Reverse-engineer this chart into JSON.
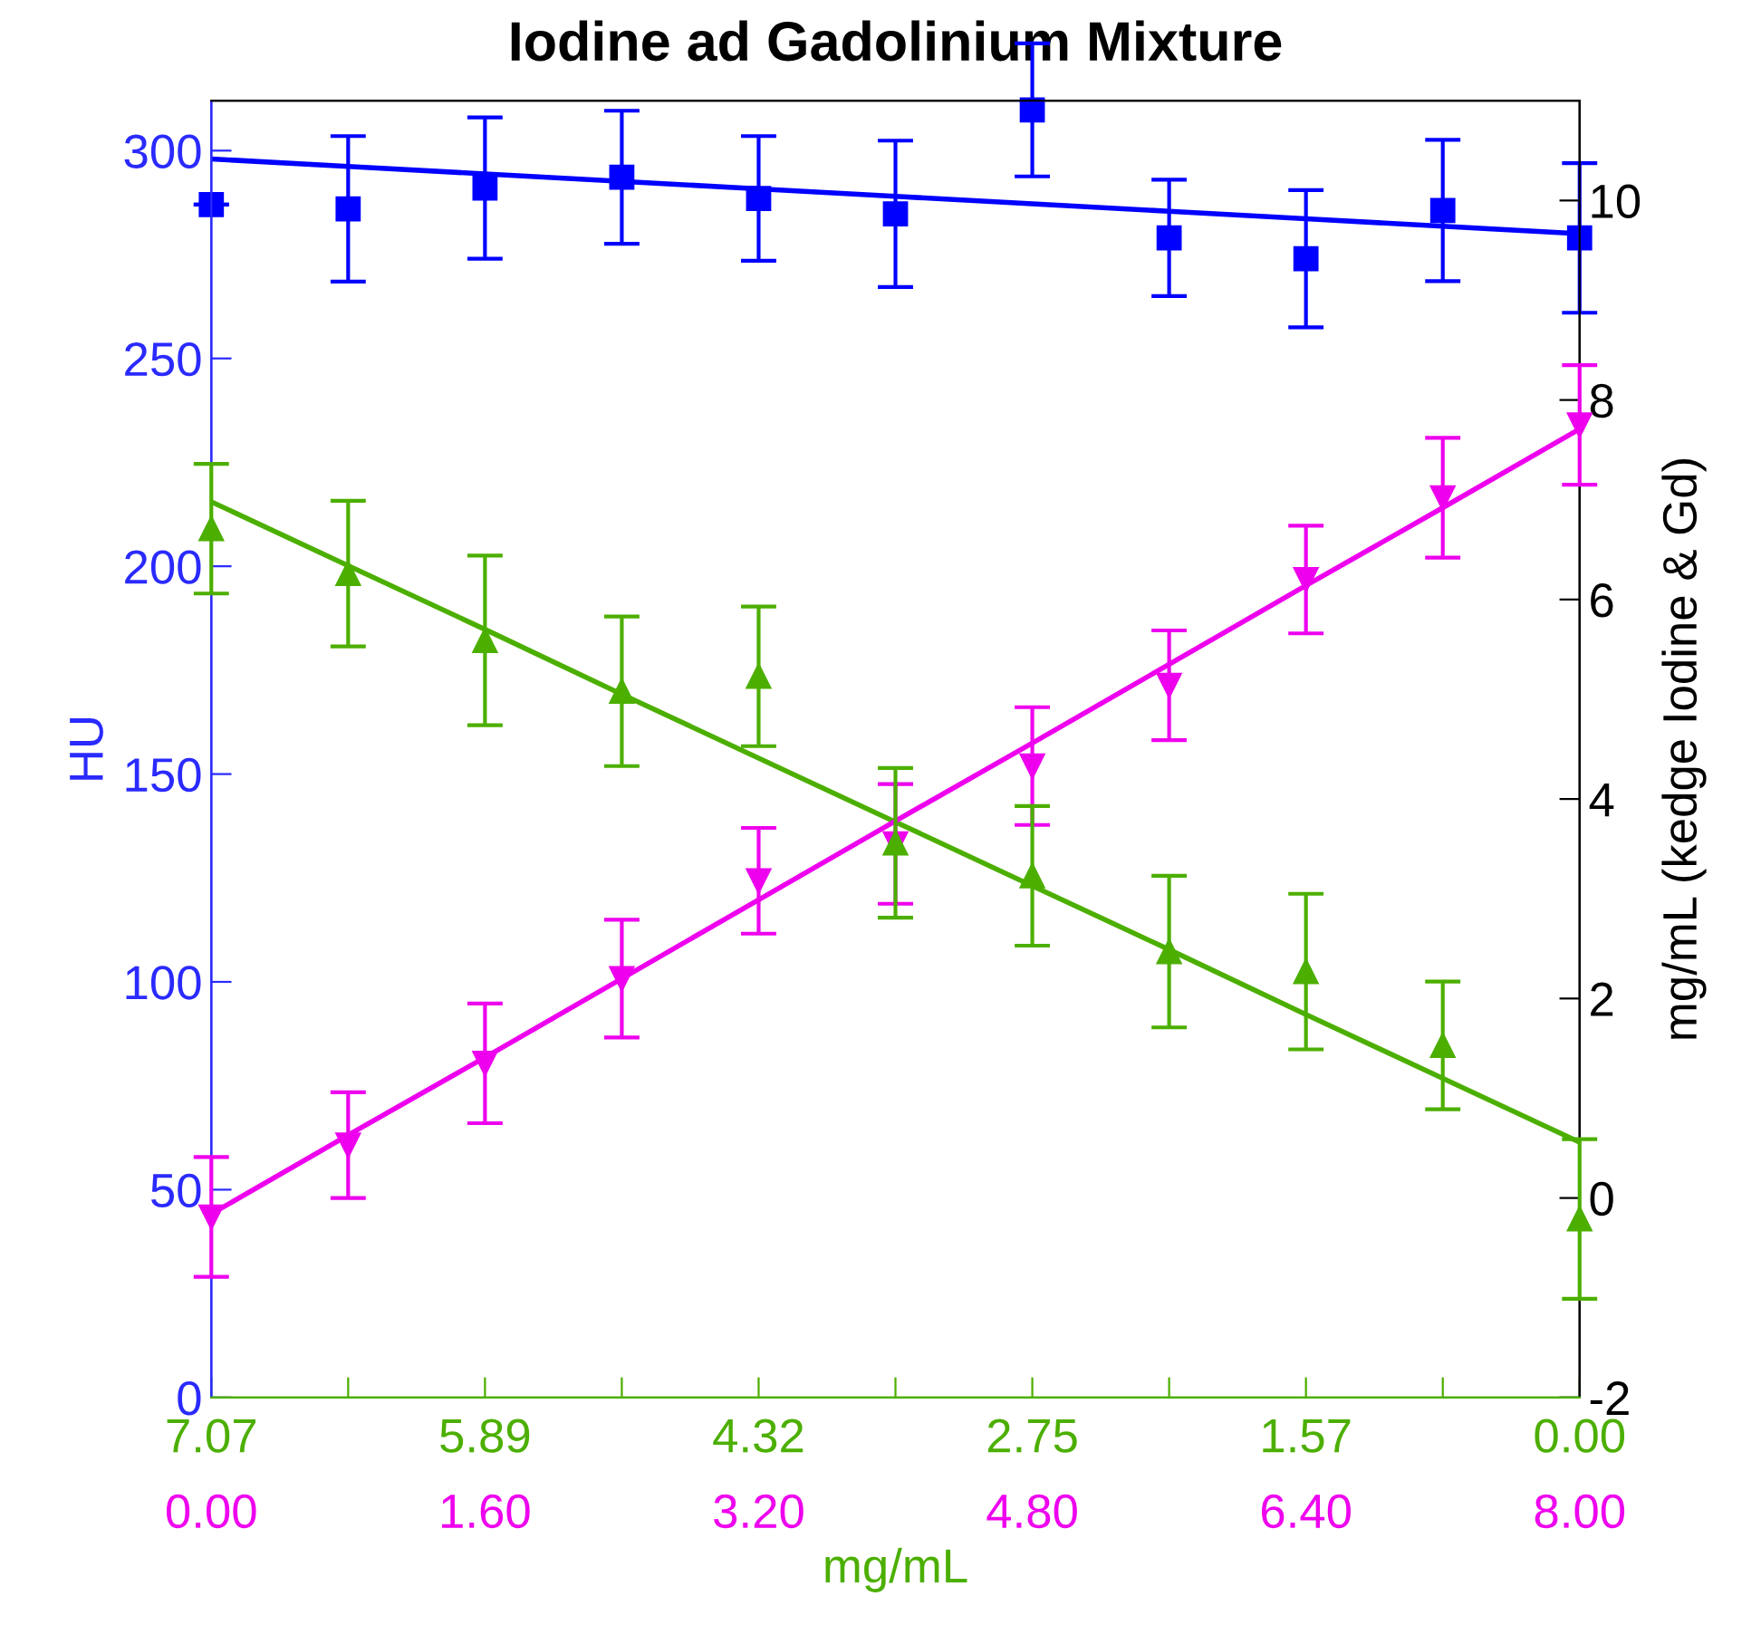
{
  "chart_data": {
    "type": "scatter",
    "title": "Iodine ad Gadolinium Mixture",
    "xlabel": "mg/mL",
    "ylabel": "HU",
    "y2label": "mg/mL (kedge Iodine & Gd)",
    "x": [
      0,
      0.8,
      1.6,
      2.4,
      3.2,
      4.0,
      4.8,
      5.6,
      6.4,
      7.2,
      8.0
    ],
    "xlim": [
      0,
      8
    ],
    "ylim": [
      0,
      312
    ],
    "y2lim": [
      -2,
      11
    ],
    "xticks": [
      {
        "value": 0,
        "label": "0.00"
      },
      {
        "value": 0.8,
        "label": null
      },
      {
        "value": 1.6,
        "label": "1.60"
      },
      {
        "value": 2.4,
        "label": null
      },
      {
        "value": 3.2,
        "label": "3.20"
      },
      {
        "value": 4.0,
        "label": null
      },
      {
        "value": 4.8,
        "label": "4.80"
      },
      {
        "value": 5.6,
        "label": null
      },
      {
        "value": 6.4,
        "label": "6.40"
      },
      {
        "value": 7.2,
        "label": null
      },
      {
        "value": 8.0,
        "label": "8.00"
      }
    ],
    "annotations": [
      "7.07",
      "5.89",
      "4.32",
      "2.75",
      "1.57",
      "0.00"
    ],
    "yticks": [
      0,
      50,
      100,
      150,
      200,
      250,
      300
    ],
    "y2ticks": [
      -2,
      0,
      2,
      4,
      6,
      8,
      10
    ],
    "grid": false,
    "legend": false,
    "series": [
      {
        "type": "scatter",
        "color": "#0000ff",
        "marker": "square",
        "axis": "y",
        "values": [
          287,
          286,
          291,
          293.6,
          288.5,
          284.8,
          309.8,
          279,
          274,
          285.6,
          279
        ],
        "errors": [
          null,
          17.5,
          17,
          16,
          15,
          17.6,
          16,
          14,
          16.5,
          17,
          18
        ]
      },
      {
        "type": "line",
        "color": "#0000ff",
        "axis": "y",
        "values": [
          298,
          296.2,
          294.4,
          292.6,
          290.8,
          289,
          287.2,
          285.4,
          283.6,
          281.8,
          280
        ]
      },
      {
        "type": "scatter",
        "color": "#4caf00",
        "marker": "triangle",
        "axis": "y2",
        "values": [
          6.71,
          6.26,
          5.59,
          5.08,
          5.23,
          3.56,
          3.23,
          2.47,
          2.27,
          1.53,
          -0.21
        ],
        "errors": [
          0.65,
          0.73,
          0.85,
          0.75,
          0.7,
          0.75,
          0.7,
          0.76,
          0.78,
          0.64,
          0.8
        ]
      },
      {
        "type": "line",
        "color": "#4caf00",
        "axis": "y2",
        "values": [
          6.98,
          6.34,
          5.7,
          5.05,
          4.41,
          3.77,
          3.13,
          2.49,
          1.84,
          1.2,
          0.56
        ]
      },
      {
        "type": "scatter",
        "color": "#ee00ee",
        "marker": "triangle_down",
        "axis": "y2",
        "values": [
          -0.19,
          0.53,
          1.35,
          2.2,
          3.18,
          3.55,
          4.33,
          5.14,
          6.2,
          7.02,
          7.75
        ],
        "errors": [
          0.6,
          0.53,
          0.6,
          0.59,
          0.53,
          0.6,
          0.59,
          0.55,
          0.54,
          0.6,
          0.6
        ]
      },
      {
        "type": "line",
        "color": "#ee00ee",
        "axis": "y2",
        "values": [
          -0.16,
          0.63,
          1.41,
          2.2,
          2.99,
          3.78,
          4.56,
          5.35,
          6.14,
          6.92,
          7.71
        ]
      }
    ]
  }
}
